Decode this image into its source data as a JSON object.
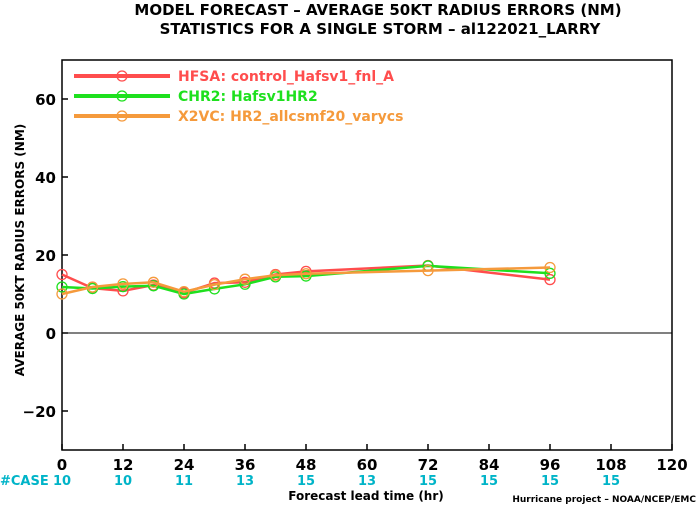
{
  "chart_data": {
    "type": "line",
    "title": "MODEL FORECAST – AVERAGE 50KT RADIUS ERRORS (NM)",
    "subtitle": "STATISTICS FOR A SINGLE STORM – al122021_LARRY",
    "xlabel": "Forecast lead time (hr)",
    "ylabel": "AVERAGE 50KT RADIUS ERRORS (NM)",
    "xlim": [
      0,
      120
    ],
    "ylim": [
      -30,
      70
    ],
    "xticks": [
      0,
      12,
      24,
      36,
      48,
      60,
      72,
      84,
      96,
      108,
      120
    ],
    "yticks": [
      -20,
      0,
      20,
      40,
      60
    ],
    "zero_line": true,
    "legend_position": "top-left",
    "case_label": "#CASE",
    "case_counts": [
      {
        "x": 0,
        "n": "10"
      },
      {
        "x": 12,
        "n": "10"
      },
      {
        "x": 24,
        "n": "11"
      },
      {
        "x": 36,
        "n": "13"
      },
      {
        "x": 48,
        "n": "15"
      },
      {
        "x": 60,
        "n": "13"
      },
      {
        "x": 72,
        "n": "15"
      },
      {
        "x": 84,
        "n": "15"
      },
      {
        "x": 96,
        "n": "15"
      },
      {
        "x": 108,
        "n": "15"
      }
    ],
    "credit": "Hurricane project – NOAA/NCEP/EMC",
    "series": [
      {
        "name": "HFSA: control_Hafsv1_fnl_A",
        "color": "#ff4d4d",
        "x": [
          0,
          6,
          12,
          18,
          24,
          30,
          36,
          42,
          48,
          72,
          96
        ],
        "y": [
          15.0,
          11.5,
          10.8,
          12.3,
          10.3,
          12.8,
          13.0,
          15.0,
          15.8,
          17.3,
          13.7
        ]
      },
      {
        "name": "CHR2: Hafsv1HR2",
        "color": "#1ee01e",
        "x": [
          0,
          6,
          12,
          18,
          24,
          30,
          36,
          42,
          48,
          72,
          96
        ],
        "y": [
          11.8,
          11.4,
          11.9,
          12.1,
          10.0,
          11.3,
          12.5,
          14.4,
          14.6,
          17.2,
          15.3
        ]
      },
      {
        "name": "X2VC: HR2_allcsmf20_varycs",
        "color": "#f59a3c",
        "x": [
          0,
          6,
          12,
          18,
          24,
          30,
          36,
          42,
          48,
          72,
          96
        ],
        "y": [
          10.0,
          11.8,
          12.6,
          13.0,
          10.6,
          12.4,
          13.8,
          14.8,
          15.2,
          16.0,
          16.8
        ]
      }
    ]
  }
}
